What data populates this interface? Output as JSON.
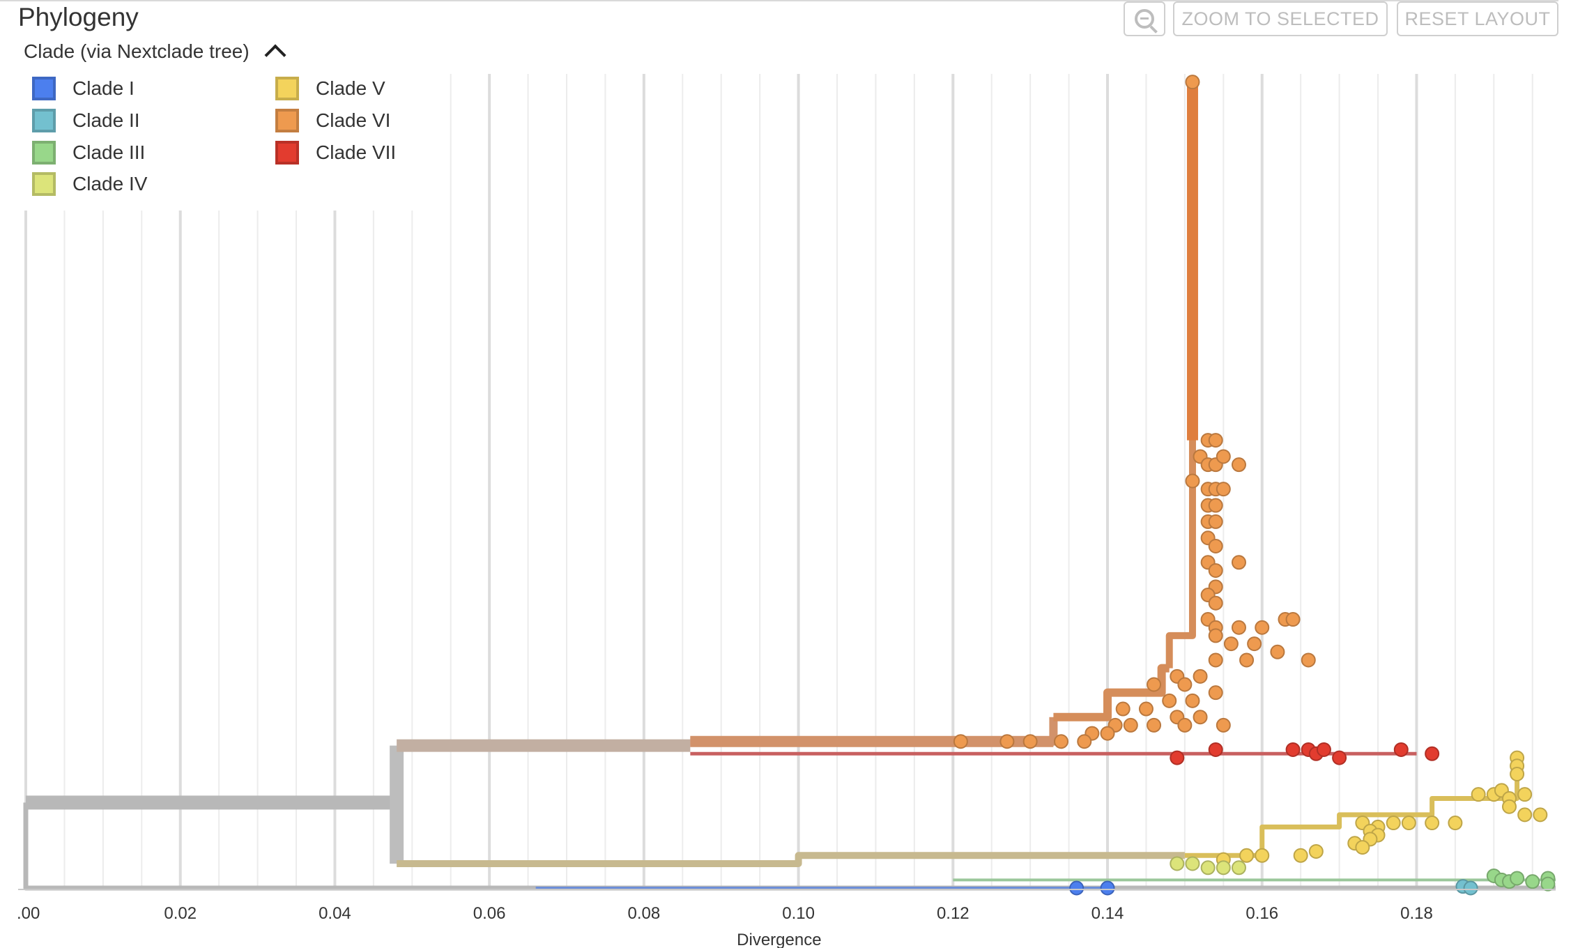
{
  "panel": {
    "title": "Phylogeny"
  },
  "legend": {
    "title": "Clade (via Nextclade tree)",
    "toggle_icon": "chevron-up-icon",
    "items": [
      {
        "label": "Clade I",
        "color": "#4C7FEE"
      },
      {
        "label": "Clade II",
        "color": "#73C0CF"
      },
      {
        "label": "Clade III",
        "color": "#98D78A"
      },
      {
        "label": "Clade IV",
        "color": "#DCE47A"
      },
      {
        "label": "Clade V",
        "color": "#F3D35C"
      },
      {
        "label": "Clade VI",
        "color": "#EE9A4F"
      },
      {
        "label": "Clade VII",
        "color": "#E23C2F"
      }
    ]
  },
  "toolbar": {
    "zoom_icon": "zoom-icon",
    "zoom_selected_label": "ZOOM TO SELECTED",
    "reset_layout_label": "RESET LAYOUT"
  },
  "chart_data": {
    "type": "tree",
    "xlabel": "Divergence",
    "ylabel": "",
    "xlim": [
      0.0,
      0.198
    ],
    "x_ticks": [
      0.0,
      0.02,
      0.04,
      0.06,
      0.08,
      0.1,
      0.12,
      0.14,
      0.16,
      0.18
    ],
    "x_tick_labels": [
      ".00",
      "0.02",
      "0.04",
      "0.06",
      "0.08",
      "0.10",
      "0.12",
      "0.14",
      "0.16",
      "0.18"
    ],
    "grid": true,
    "branches": [
      {
        "clade": "root",
        "color": "#B8B8B8",
        "path": [
          [
            0.0,
            0.105
          ],
          [
            0.0,
            0.0
          ],
          [
            0.198,
            0.0
          ]
        ],
        "width": 7
      },
      {
        "clade": "root",
        "color": "#B8B8B8",
        "path": [
          [
            0.0,
            0.105
          ],
          [
            0.048,
            0.105
          ]
        ],
        "width": 20
      },
      {
        "clade": "root",
        "color": "#BDBDBD",
        "path": [
          [
            0.048,
            0.03
          ],
          [
            0.048,
            0.175
          ]
        ],
        "width": 20
      },
      {
        "clade": "Clade VI stem",
        "color": "#C2AFA2",
        "path": [
          [
            0.048,
            0.175
          ],
          [
            0.086,
            0.175
          ]
        ],
        "width": 18
      },
      {
        "clade": "Clade VI",
        "color": "#D2926A",
        "path": [
          [
            0.086,
            0.18
          ],
          [
            0.133,
            0.18
          ]
        ],
        "width": 16
      },
      {
        "clade": "Clade VI",
        "color": "#D2926A",
        "path": [
          [
            0.086,
            0.18
          ],
          [
            0.133,
            0.18
          ],
          [
            0.133,
            0.21
          ]
        ],
        "width": 12
      },
      {
        "clade": "Clade VI",
        "color": "#D58D5A",
        "path": [
          [
            0.133,
            0.21
          ],
          [
            0.14,
            0.21
          ],
          [
            0.14,
            0.24
          ],
          [
            0.147,
            0.24
          ],
          [
            0.147,
            0.27
          ],
          [
            0.148,
            0.27
          ]
        ],
        "width": 12
      },
      {
        "clade": "Clade VI",
        "color": "#D58D5A",
        "path": [
          [
            0.148,
            0.27
          ],
          [
            0.148,
            0.31
          ],
          [
            0.151,
            0.31
          ],
          [
            0.151,
            0.99
          ]
        ],
        "width": 10
      },
      {
        "clade": "Clade VI",
        "color": "#DF7E3E",
        "path": [
          [
            0.151,
            0.55
          ],
          [
            0.151,
            0.99
          ]
        ],
        "width": 16
      },
      {
        "clade": "Clade VII",
        "color": "#C86060",
        "path": [
          [
            0.086,
            0.165
          ],
          [
            0.152,
            0.165
          ],
          [
            0.18,
            0.165
          ]
        ],
        "width": 5
      },
      {
        "clade": "Clade IV/V stem",
        "color": "#C7B98F",
        "path": [
          [
            0.048,
            0.03
          ],
          [
            0.1,
            0.03
          ],
          [
            0.1,
            0.04
          ],
          [
            0.15,
            0.04
          ]
        ],
        "width": 10
      },
      {
        "clade": "Clade V",
        "color": "#D9BE5A",
        "path": [
          [
            0.15,
            0.04
          ],
          [
            0.16,
            0.04
          ],
          [
            0.16,
            0.075
          ],
          [
            0.17,
            0.075
          ],
          [
            0.17,
            0.09
          ],
          [
            0.182,
            0.09
          ],
          [
            0.182,
            0.11
          ],
          [
            0.193,
            0.11
          ],
          [
            0.193,
            0.16
          ]
        ],
        "width": 7
      },
      {
        "clade": "Clade III",
        "color": "#9AC79A",
        "path": [
          [
            0.12,
            0.01
          ],
          [
            0.198,
            0.01
          ]
        ],
        "width": 4
      },
      {
        "clade": "Clade I",
        "color": "#6C8ED8",
        "path": [
          [
            0.066,
            0.0
          ],
          [
            0.14,
            0.0
          ]
        ],
        "width": 4
      }
    ],
    "tips": [
      {
        "clade": "Clade VI",
        "points": [
          [
            0.151,
            0.99
          ],
          [
            0.153,
            0.55
          ],
          [
            0.154,
            0.55
          ],
          [
            0.152,
            0.53
          ],
          [
            0.153,
            0.52
          ],
          [
            0.154,
            0.52
          ],
          [
            0.155,
            0.53
          ],
          [
            0.157,
            0.52
          ],
          [
            0.151,
            0.5
          ],
          [
            0.153,
            0.49
          ],
          [
            0.154,
            0.49
          ],
          [
            0.155,
            0.49
          ],
          [
            0.153,
            0.47
          ],
          [
            0.154,
            0.47
          ],
          [
            0.153,
            0.45
          ],
          [
            0.154,
            0.45
          ],
          [
            0.153,
            0.43
          ],
          [
            0.154,
            0.42
          ],
          [
            0.153,
            0.4
          ],
          [
            0.154,
            0.39
          ],
          [
            0.157,
            0.4
          ],
          [
            0.154,
            0.37
          ],
          [
            0.153,
            0.36
          ],
          [
            0.154,
            0.35
          ],
          [
            0.153,
            0.33
          ],
          [
            0.154,
            0.32
          ],
          [
            0.157,
            0.32
          ],
          [
            0.16,
            0.32
          ],
          [
            0.163,
            0.33
          ],
          [
            0.164,
            0.33
          ],
          [
            0.154,
            0.31
          ],
          [
            0.156,
            0.3
          ],
          [
            0.159,
            0.3
          ],
          [
            0.162,
            0.29
          ],
          [
            0.154,
            0.28
          ],
          [
            0.158,
            0.28
          ],
          [
            0.166,
            0.28
          ],
          [
            0.149,
            0.26
          ],
          [
            0.152,
            0.26
          ],
          [
            0.146,
            0.25
          ],
          [
            0.15,
            0.25
          ],
          [
            0.154,
            0.24
          ],
          [
            0.148,
            0.23
          ],
          [
            0.151,
            0.23
          ],
          [
            0.142,
            0.22
          ],
          [
            0.145,
            0.22
          ],
          [
            0.149,
            0.21
          ],
          [
            0.152,
            0.21
          ],
          [
            0.141,
            0.2
          ],
          [
            0.143,
            0.2
          ],
          [
            0.146,
            0.2
          ],
          [
            0.15,
            0.2
          ],
          [
            0.155,
            0.2
          ],
          [
            0.138,
            0.19
          ],
          [
            0.14,
            0.19
          ],
          [
            0.121,
            0.18
          ],
          [
            0.127,
            0.18
          ],
          [
            0.13,
            0.18
          ],
          [
            0.134,
            0.18
          ],
          [
            0.137,
            0.18
          ]
        ]
      },
      {
        "clade": "Clade VII",
        "points": [
          [
            0.149,
            0.16
          ],
          [
            0.154,
            0.17
          ],
          [
            0.164,
            0.17
          ],
          [
            0.166,
            0.17
          ],
          [
            0.167,
            0.165
          ],
          [
            0.168,
            0.17
          ],
          [
            0.17,
            0.16
          ],
          [
            0.178,
            0.17
          ],
          [
            0.182,
            0.165
          ]
        ]
      },
      {
        "clade": "Clade V",
        "points": [
          [
            0.193,
            0.16
          ],
          [
            0.193,
            0.15
          ],
          [
            0.193,
            0.14
          ],
          [
            0.188,
            0.115
          ],
          [
            0.19,
            0.115
          ],
          [
            0.191,
            0.12
          ],
          [
            0.192,
            0.11
          ],
          [
            0.194,
            0.115
          ],
          [
            0.192,
            0.1
          ],
          [
            0.194,
            0.09
          ],
          [
            0.196,
            0.09
          ],
          [
            0.182,
            0.08
          ],
          [
            0.185,
            0.08
          ],
          [
            0.173,
            0.08
          ],
          [
            0.175,
            0.075
          ],
          [
            0.177,
            0.08
          ],
          [
            0.179,
            0.08
          ],
          [
            0.174,
            0.07
          ],
          [
            0.175,
            0.065
          ],
          [
            0.174,
            0.06
          ],
          [
            0.172,
            0.055
          ],
          [
            0.173,
            0.05
          ],
          [
            0.165,
            0.04
          ],
          [
            0.167,
            0.045
          ],
          [
            0.16,
            0.04
          ],
          [
            0.158,
            0.04
          ],
          [
            0.155,
            0.035
          ]
        ]
      },
      {
        "clade": "Clade IV",
        "points": [
          [
            0.149,
            0.03
          ],
          [
            0.151,
            0.03
          ],
          [
            0.153,
            0.025
          ],
          [
            0.155,
            0.025
          ],
          [
            0.157,
            0.025
          ]
        ]
      },
      {
        "clade": "Clade III",
        "points": [
          [
            0.19,
            0.015
          ],
          [
            0.191,
            0.01
          ],
          [
            0.192,
            0.008
          ],
          [
            0.193,
            0.012
          ],
          [
            0.195,
            0.008
          ],
          [
            0.197,
            0.012
          ],
          [
            0.197,
            0.005
          ]
        ]
      },
      {
        "clade": "Clade II",
        "points": [
          [
            0.186,
            0.002
          ],
          [
            0.187,
            0.0
          ]
        ]
      },
      {
        "clade": "Clade I",
        "points": [
          [
            0.136,
            0.0
          ],
          [
            0.14,
            0.0
          ]
        ]
      }
    ]
  }
}
